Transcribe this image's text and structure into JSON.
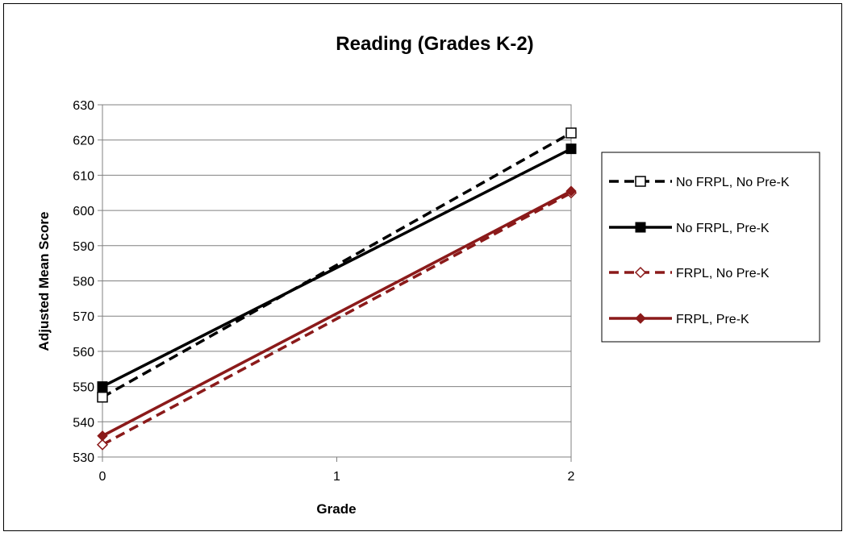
{
  "chart_data": {
    "type": "line",
    "title": "Reading (Grades K-2)",
    "xlabel": "Grade",
    "ylabel": "Adjusted Mean Score",
    "x": [
      0,
      1,
      2
    ],
    "x_ticks": [
      "0",
      "1",
      "2"
    ],
    "ylim": [
      530,
      630
    ],
    "y_ticks": [
      "530",
      "540",
      "550",
      "560",
      "570",
      "580",
      "590",
      "600",
      "610",
      "620",
      "630"
    ],
    "grid": "horizontal",
    "legend_position": "right",
    "series": [
      {
        "name": "No FRPL, No Pre-K",
        "values": [
          547,
          null,
          622
        ],
        "color": "#000000",
        "dash": "dashed",
        "marker": "square-open"
      },
      {
        "name": "No FRPL, Pre-K",
        "values": [
          550,
          null,
          617.5
        ],
        "color": "#000000",
        "dash": "solid",
        "marker": "square-filled"
      },
      {
        "name": "FRPL, No Pre-K",
        "values": [
          533.5,
          null,
          605
        ],
        "color": "#8b1a1a",
        "dash": "dashed",
        "marker": "diamond-open"
      },
      {
        "name": "FRPL, Pre-K",
        "values": [
          536,
          null,
          605.5
        ],
        "color": "#8b1a1a",
        "dash": "solid",
        "marker": "diamond-filled"
      }
    ]
  }
}
